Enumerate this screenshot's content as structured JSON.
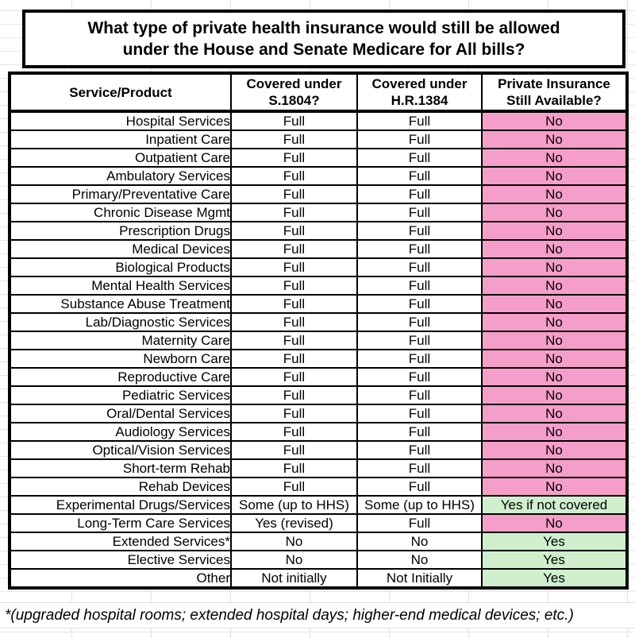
{
  "title": {
    "line1": "What type of private health insurance would still be allowed",
    "line2": "under the House and Senate Medicare for All bills?"
  },
  "table": {
    "headers": [
      "Service/Product",
      "Covered under S.1804?",
      "Covered under H.R.1384",
      "Private Insurance Still Available?"
    ],
    "rows": [
      {
        "service": "Hospital Services",
        "s1804": "Full",
        "hr1384": "Full",
        "available": "No",
        "highlight": "pink"
      },
      {
        "service": "Inpatient Care",
        "s1804": "Full",
        "hr1384": "Full",
        "available": "No",
        "highlight": "pink"
      },
      {
        "service": "Outpatient Care",
        "s1804": "Full",
        "hr1384": "Full",
        "available": "No",
        "highlight": "pink"
      },
      {
        "service": "Ambulatory Services",
        "s1804": "Full",
        "hr1384": "Full",
        "available": "No",
        "highlight": "pink"
      },
      {
        "service": "Primary/Preventative Care",
        "s1804": "Full",
        "hr1384": "Full",
        "available": "No",
        "highlight": "pink"
      },
      {
        "service": "Chronic Disease Mgmt",
        "s1804": "Full",
        "hr1384": "Full",
        "available": "No",
        "highlight": "pink"
      },
      {
        "service": "Prescription Drugs",
        "s1804": "Full",
        "hr1384": "Full",
        "available": "No",
        "highlight": "pink"
      },
      {
        "service": "Medical Devices",
        "s1804": "Full",
        "hr1384": "Full",
        "available": "No",
        "highlight": "pink"
      },
      {
        "service": "Biological Products",
        "s1804": "Full",
        "hr1384": "Full",
        "available": "No",
        "highlight": "pink"
      },
      {
        "service": "Mental Health Services",
        "s1804": "Full",
        "hr1384": "Full",
        "available": "No",
        "highlight": "pink"
      },
      {
        "service": "Substance Abuse Treatment",
        "s1804": "Full",
        "hr1384": "Full",
        "available": "No",
        "highlight": "pink"
      },
      {
        "service": "Lab/Diagnostic Services",
        "s1804": "Full",
        "hr1384": "Full",
        "available": "No",
        "highlight": "pink"
      },
      {
        "service": "Maternity Care",
        "s1804": "Full",
        "hr1384": "Full",
        "available": "No",
        "highlight": "pink"
      },
      {
        "service": "Newborn Care",
        "s1804": "Full",
        "hr1384": "Full",
        "available": "No",
        "highlight": "pink"
      },
      {
        "service": "Reproductive Care",
        "s1804": "Full",
        "hr1384": "Full",
        "available": "No",
        "highlight": "pink"
      },
      {
        "service": "Pediatric Services",
        "s1804": "Full",
        "hr1384": "Full",
        "available": "No",
        "highlight": "pink"
      },
      {
        "service": "Oral/Dental Services",
        "s1804": "Full",
        "hr1384": "Full",
        "available": "No",
        "highlight": "pink"
      },
      {
        "service": "Audiology Services",
        "s1804": "Full",
        "hr1384": "Full",
        "available": "No",
        "highlight": "pink"
      },
      {
        "service": "Optical/Vision Services",
        "s1804": "Full",
        "hr1384": "Full",
        "available": "No",
        "highlight": "pink"
      },
      {
        "service": "Short-term Rehab",
        "s1804": "Full",
        "hr1384": "Full",
        "available": "No",
        "highlight": "pink"
      },
      {
        "service": "Rehab Devices",
        "s1804": "Full",
        "hr1384": "Full",
        "available": "No",
        "highlight": "pink"
      },
      {
        "service": "Experimental Drugs/Services",
        "s1804": "Some (up to HHS)",
        "hr1384": "Some (up to HHS)",
        "available": "Yes if not covered",
        "highlight": "green"
      },
      {
        "service": "Long-Term Care Services",
        "s1804": "Yes (revised)",
        "hr1384": "Full",
        "available": "No",
        "highlight": "pink"
      },
      {
        "service": "Extended Services*",
        "s1804": "No",
        "hr1384": "No",
        "available": "Yes",
        "highlight": "green"
      },
      {
        "service": "Elective Services",
        "s1804": "No",
        "hr1384": "No",
        "available": "Yes",
        "highlight": "green"
      },
      {
        "service": "Other",
        "s1804": "Not initially",
        "hr1384": "Not Initially",
        "available": "Yes",
        "highlight": "green"
      }
    ]
  },
  "footnote": "*(upgraded hospital rooms; extended hospital days; higher-end medical devices; etc.)",
  "colors": {
    "pink": "#F59EC9",
    "green": "#CFEFCD",
    "border": "#000000",
    "gridline": "#E2E2E2"
  }
}
